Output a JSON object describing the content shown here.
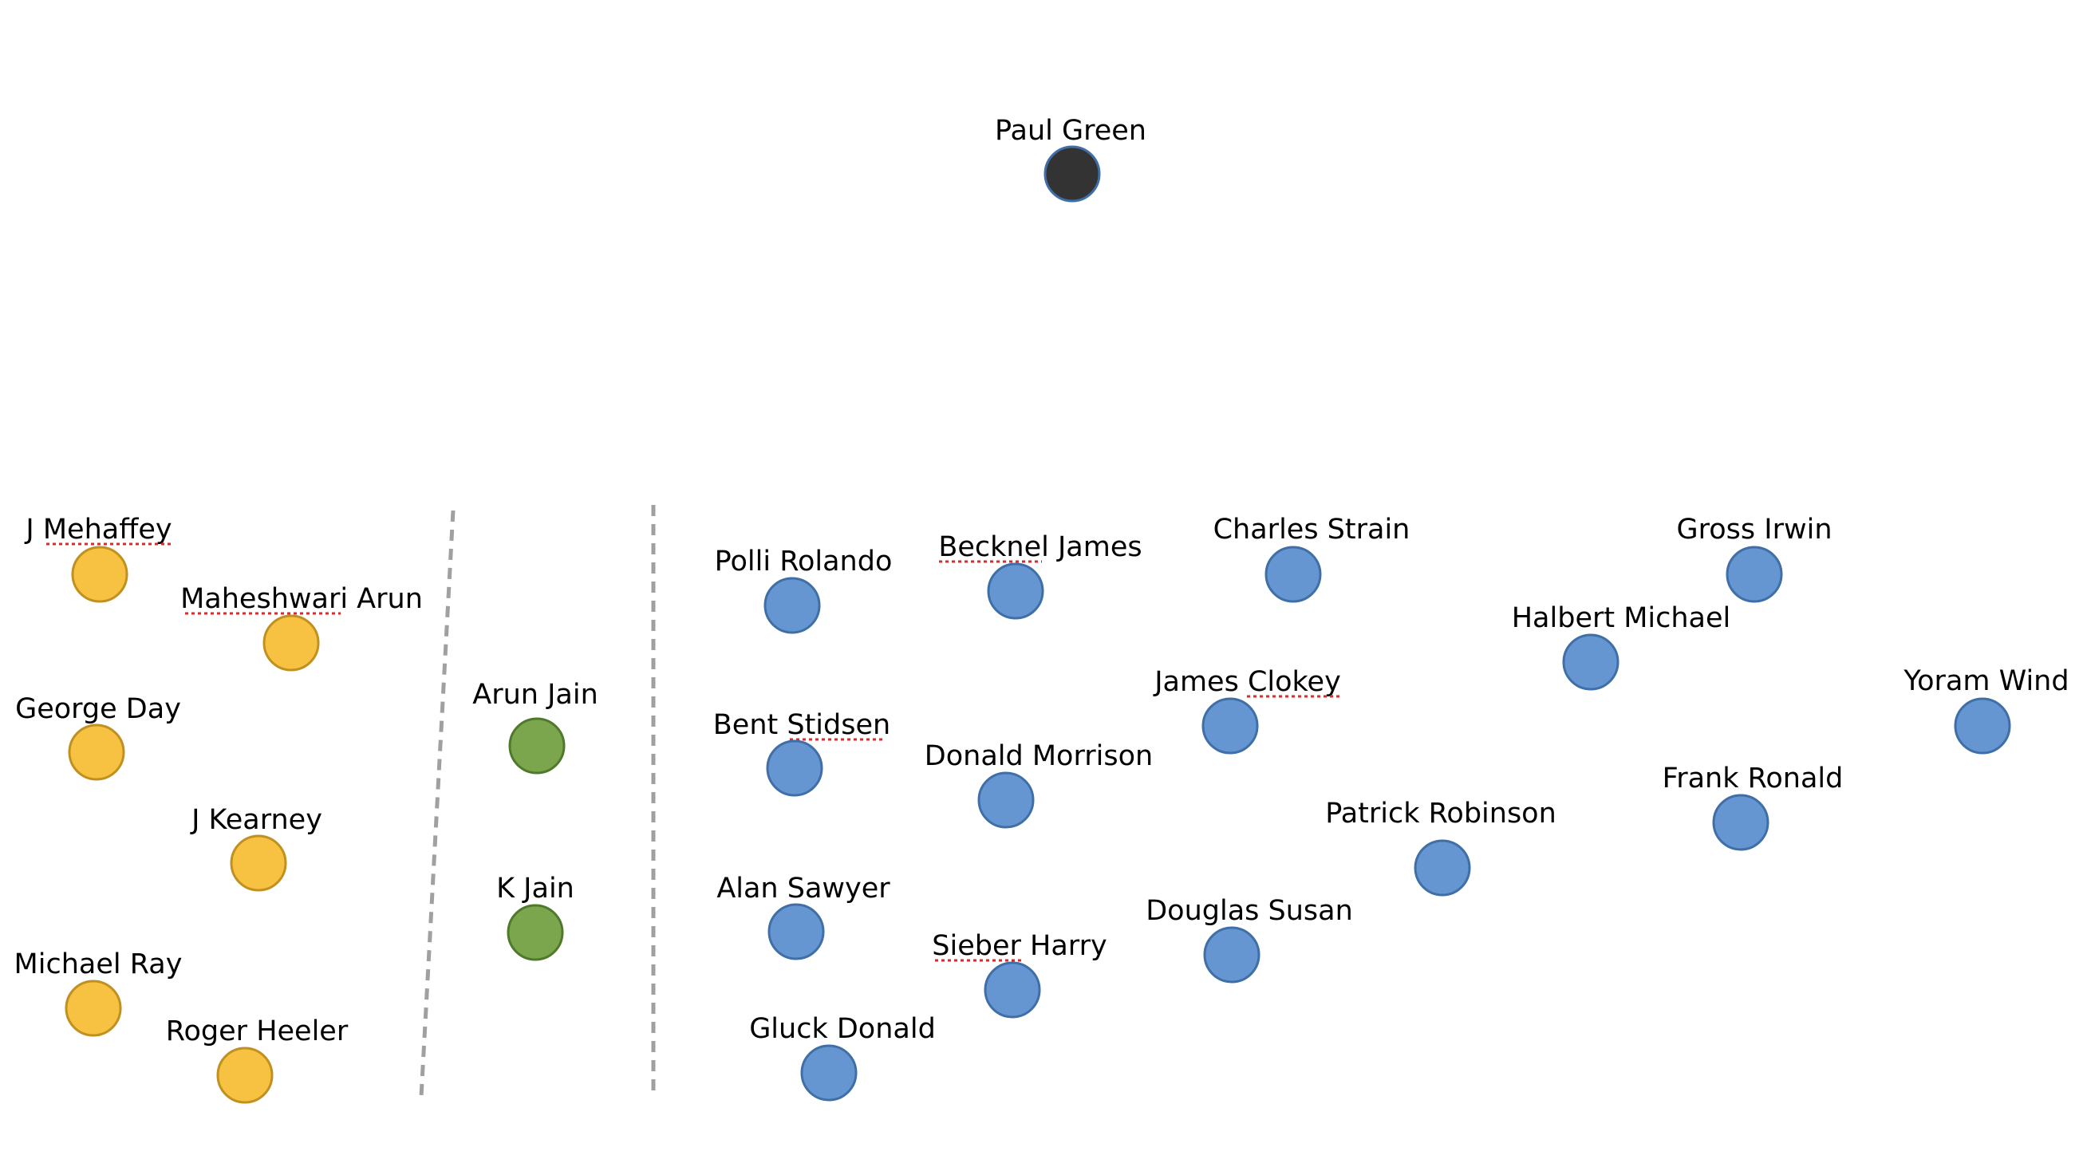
{
  "colors": {
    "yellow_fill": "#f7c242",
    "yellow_stroke": "#c09020",
    "green_fill": "#7ba64e",
    "green_stroke": "#4f7a2c",
    "blue_fill": "#6596d1",
    "blue_stroke": "#3f6fa6",
    "dark_fill": "#333333",
    "dark_stroke": "#3f6fa6",
    "spell_underline": "#d92b2b",
    "divider": "#a0a0a0"
  },
  "nodes": [
    {
      "id": "paul-green",
      "label": "Paul Green",
      "group": "dark"
    },
    {
      "id": "j-mehaffey",
      "label": "J Mehaffey",
      "group": "yellow"
    },
    {
      "id": "maheshwari-arun",
      "label": "Maheshwari Arun",
      "group": "yellow"
    },
    {
      "id": "george-day",
      "label": "George Day",
      "group": "yellow"
    },
    {
      "id": "j-kearney",
      "label": "J Kearney",
      "group": "yellow"
    },
    {
      "id": "michael-ray",
      "label": "Michael Ray",
      "group": "yellow"
    },
    {
      "id": "roger-heeler",
      "label": "Roger Heeler",
      "group": "yellow"
    },
    {
      "id": "arun-jain",
      "label": "Arun Jain",
      "group": "green"
    },
    {
      "id": "k-jain",
      "label": "K Jain",
      "group": "green"
    },
    {
      "id": "polli-rolando",
      "label": "Polli Rolando",
      "group": "blue"
    },
    {
      "id": "becknel-james",
      "label": "Becknel James",
      "group": "blue"
    },
    {
      "id": "charles-strain",
      "label": "Charles Strain",
      "group": "blue"
    },
    {
      "id": "gross-irwin",
      "label": "Gross Irwin",
      "group": "blue"
    },
    {
      "id": "halbert-michael",
      "label": "Halbert Michael",
      "group": "blue"
    },
    {
      "id": "james-clokey",
      "label": "James Clokey",
      "group": "blue"
    },
    {
      "id": "yoram-wind",
      "label": "Yoram Wind",
      "group": "blue"
    },
    {
      "id": "bent-stidsen",
      "label": "Bent Stidsen",
      "group": "blue"
    },
    {
      "id": "donald-morrison",
      "label": "Donald Morrison",
      "group": "blue"
    },
    {
      "id": "frank-ronald",
      "label": "Frank Ronald",
      "group": "blue"
    },
    {
      "id": "patrick-robinson",
      "label": "Patrick Robinson",
      "group": "blue"
    },
    {
      "id": "alan-sawyer",
      "label": "Alan Sawyer",
      "group": "blue"
    },
    {
      "id": "douglas-susan",
      "label": "Douglas Susan",
      "group": "blue"
    },
    {
      "id": "sieber-harry",
      "label": "Sieber Harry",
      "group": "blue"
    },
    {
      "id": "gluck-donald",
      "label": "Gluck Donald",
      "group": "blue"
    }
  ]
}
